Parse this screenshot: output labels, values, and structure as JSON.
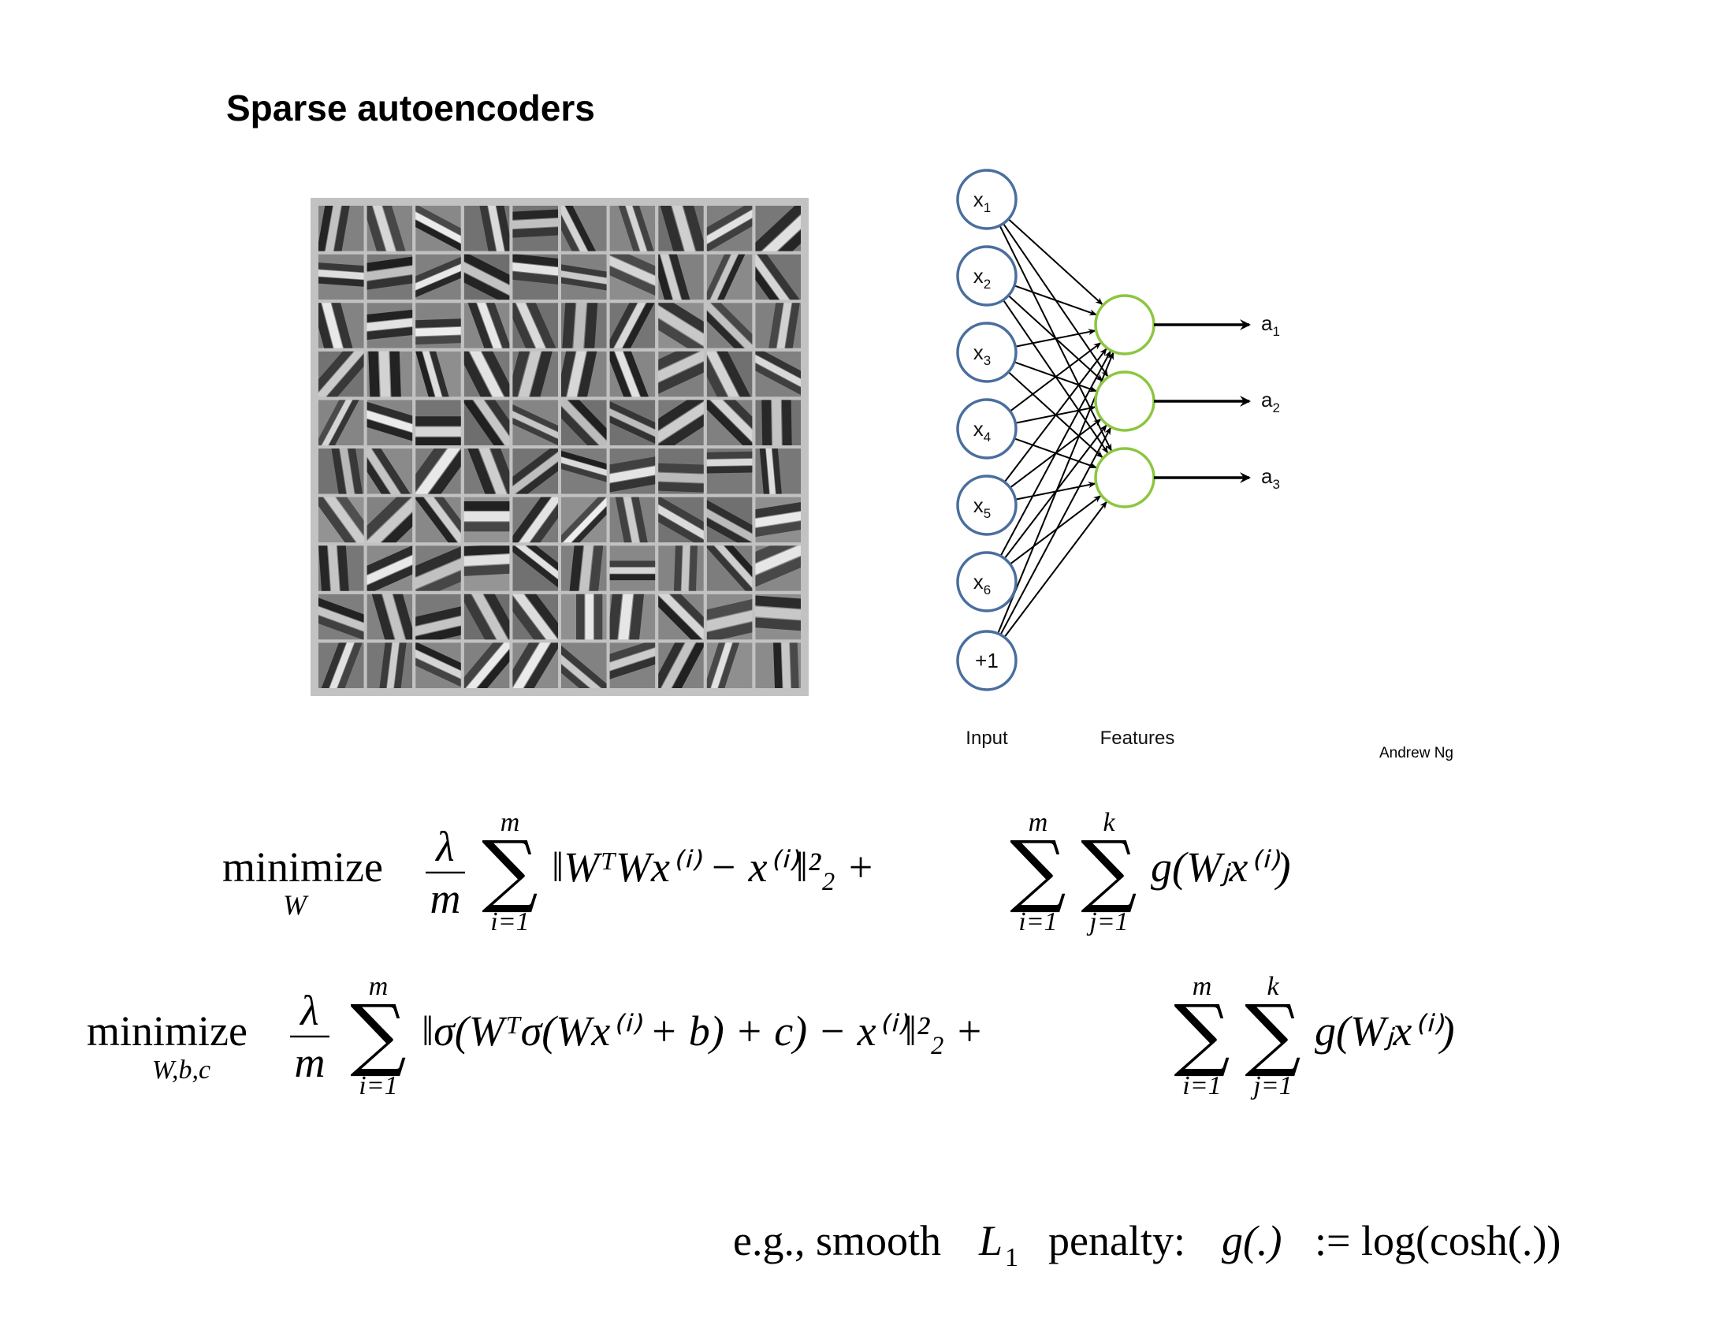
{
  "slide": {
    "title": "Sparse autoencoders",
    "credit": "Andrew Ng"
  },
  "filters": {
    "rows": 10,
    "cols": 10,
    "background_color": "#c2c2c2"
  },
  "network": {
    "input_nodes": [
      {
        "base": "x",
        "sub": "1"
      },
      {
        "base": "x",
        "sub": "2"
      },
      {
        "base": "x",
        "sub": "3"
      },
      {
        "base": "x",
        "sub": "4"
      },
      {
        "base": "x",
        "sub": "5"
      },
      {
        "base": "x",
        "sub": "6"
      },
      {
        "base": "+1",
        "sub": ""
      }
    ],
    "feature_nodes": 3,
    "outputs": [
      {
        "base": "a",
        "sub": "1"
      },
      {
        "base": "a",
        "sub": "2"
      },
      {
        "base": "a",
        "sub": "3"
      }
    ],
    "input_label": "Input",
    "features_label": "Features",
    "input_node_color": "#4a6e9e",
    "feature_node_color": "#8cc63f"
  },
  "equations": {
    "eq1": {
      "operator": "minimize",
      "operator_sub": "W",
      "frac_num": "λ",
      "frac_den": "m",
      "sum_top": "m",
      "sum_bottom": "i=1",
      "norm_body": "‖WᵀWx⁽ⁱ⁾ − x⁽ⁱ⁾‖²₂ +",
      "sum2_top": "m",
      "sum2_bottom": "i=1",
      "sum3_top": "k",
      "sum3_bottom": "j=1",
      "tail": "g(Wⱼx⁽ⁱ⁾)"
    },
    "eq2": {
      "operator": "minimize",
      "operator_sub": "W,b,c",
      "frac_num": "λ",
      "frac_den": "m",
      "sum_top": "m",
      "sum_bottom": "i=1",
      "norm_body": "‖σ(Wᵀσ(Wx⁽ⁱ⁾ + b) + c) − x⁽ⁱ⁾‖²₂ +",
      "sum2_top": "m",
      "sum2_bottom": "i=1",
      "sum3_top": "k",
      "sum3_bottom": "j=1",
      "tail": "g(Wⱼx⁽ⁱ⁾)"
    },
    "note": {
      "prefix": "e.g., smooth",
      "var": "L",
      "var_sub": "1",
      "suffix": "penalty:",
      "func": "g(.)",
      "def": ":= log(cosh(.))"
    }
  }
}
